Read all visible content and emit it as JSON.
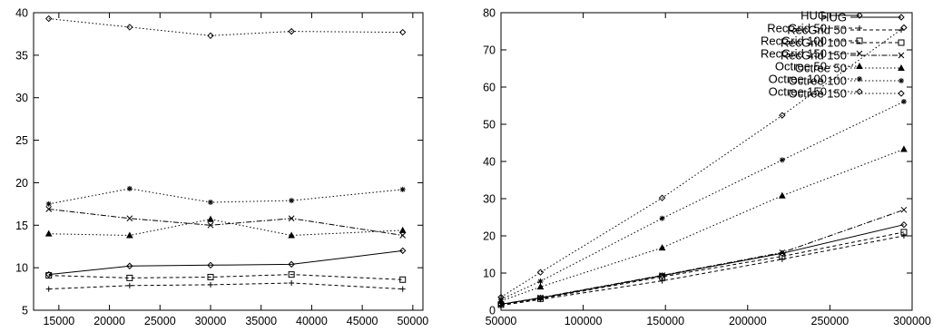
{
  "chart_data": [
    {
      "type": "line",
      "title": "",
      "xlabel": "",
      "ylabel": "",
      "xlim": [
        12500,
        51000
      ],
      "ylim": [
        5,
        40
      ],
      "xticks": [
        15000,
        20000,
        25000,
        30000,
        35000,
        40000,
        45000,
        50000
      ],
      "yticks": [
        5,
        10,
        15,
        20,
        25,
        30,
        35,
        40
      ],
      "grid": false,
      "legend_position": "top-right",
      "series": [
        {
          "name": "HUG",
          "marker": "diamond",
          "style": "solid",
          "x": [
            14000,
            22000,
            30000,
            38000,
            49000
          ],
          "y": [
            9.2,
            10.2,
            10.3,
            10.4,
            12.0
          ]
        },
        {
          "name": "RecGrid 50",
          "marker": "plus",
          "style": "dashed",
          "x": [
            14000,
            22000,
            30000,
            38000,
            49000
          ],
          "y": [
            7.5,
            7.9,
            8.0,
            8.2,
            7.5
          ]
        },
        {
          "name": "RecGrid 100",
          "marker": "square",
          "style": "dashed",
          "x": [
            14000,
            22000,
            30000,
            38000,
            49000
          ],
          "y": [
            9.1,
            8.8,
            8.9,
            9.2,
            8.6
          ]
        },
        {
          "name": "RecGrid 150",
          "marker": "cross",
          "style": "dashdot",
          "x": [
            14000,
            22000,
            30000,
            38000,
            49000
          ],
          "y": [
            16.9,
            15.8,
            15.0,
            15.8,
            13.8
          ]
        },
        {
          "name": "Octree 50",
          "marker": "triangle",
          "style": "dotted",
          "x": [
            14000,
            22000,
            30000,
            38000,
            49000
          ],
          "y": [
            14.0,
            13.8,
            15.7,
            13.8,
            14.4
          ]
        },
        {
          "name": "Octree 100",
          "marker": "star",
          "style": "dotted",
          "x": [
            14000,
            22000,
            30000,
            38000,
            49000
          ],
          "y": [
            17.5,
            19.3,
            17.7,
            17.9,
            19.2
          ]
        },
        {
          "name": "Octree 150",
          "marker": "diamond",
          "style": "dotted",
          "x": [
            14000,
            22000,
            30000,
            38000,
            49000
          ],
          "y": [
            39.3,
            38.3,
            37.3,
            37.8,
            37.7
          ]
        }
      ]
    },
    {
      "type": "line",
      "title": "",
      "xlabel": "",
      "ylabel": "",
      "xlim": [
        50000,
        300000
      ],
      "ylim": [
        0,
        80
      ],
      "xticks": [
        50000,
        100000,
        150000,
        200000,
        250000,
        300000
      ],
      "yticks": [
        0,
        10,
        20,
        30,
        40,
        50,
        60,
        70,
        80
      ],
      "grid": false,
      "legend_position": "top-right",
      "series": [
        {
          "name": "HUG",
          "marker": "diamond",
          "style": "solid",
          "x": [
            50000,
            74000,
            148000,
            221000,
            295000
          ],
          "y": [
            1.6,
            3.3,
            9.3,
            15.3,
            23.0
          ]
        },
        {
          "name": "RecGrid 50",
          "marker": "plus",
          "style": "dashed",
          "x": [
            50000,
            74000,
            148000,
            221000,
            295000
          ],
          "y": [
            1.3,
            2.9,
            7.9,
            13.7,
            20.0
          ]
        },
        {
          "name": "RecGrid 100",
          "marker": "square",
          "style": "dashed",
          "x": [
            50000,
            74000,
            148000,
            221000,
            295000
          ],
          "y": [
            1.5,
            3.1,
            9.0,
            14.5,
            21.0
          ]
        },
        {
          "name": "RecGrid 150",
          "marker": "cross",
          "style": "dashdot",
          "x": [
            50000,
            74000,
            148000,
            221000,
            295000
          ],
          "y": [
            1.6,
            3.4,
            9.4,
            15.5,
            27.0
          ]
        },
        {
          "name": "Octree 50",
          "marker": "triangle",
          "style": "dotted",
          "x": [
            50000,
            74000,
            148000,
            221000,
            295000
          ],
          "y": [
            2.5,
            6.3,
            16.8,
            30.8,
            43.3
          ]
        },
        {
          "name": "Octree 100",
          "marker": "star",
          "style": "dotted",
          "x": [
            50000,
            74000,
            148000,
            221000,
            295000
          ],
          "y": [
            2.9,
            7.8,
            24.7,
            40.4,
            56.1
          ]
        },
        {
          "name": "Octree 150",
          "marker": "diamond",
          "style": "dotted",
          "x": [
            50000,
            74000,
            148000,
            221000,
            295000
          ],
          "y": [
            3.5,
            10.2,
            30.2,
            52.4,
            76.0
          ]
        }
      ]
    }
  ]
}
